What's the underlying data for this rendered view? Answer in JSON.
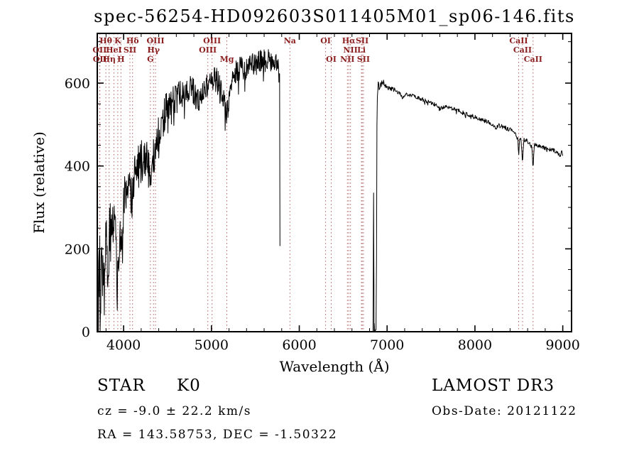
{
  "title": "spec-56254-HD092603S011405M01_sp06-146.fits",
  "axes": {
    "xlabel": "Wavelength (Å)",
    "ylabel": "Flux (relative)",
    "x_range": [
      3700,
      9100
    ],
    "y_range": [
      0,
      720
    ],
    "x_ticks": [
      4000,
      5000,
      6000,
      7000,
      8000,
      9000
    ],
    "y_ticks": [
      0,
      200,
      400,
      600
    ],
    "x_minor_step": 200,
    "y_minor_step": 50
  },
  "annotations": {
    "class_label": "STAR",
    "subclass": "K0",
    "cz": "cz = -9.0 ± 22.2 km/s",
    "radec": "RA = 143.58753, DEC =  -1.50322",
    "survey": "LAMOST DR3",
    "obs_date": "Obs-Date: 20121122"
  },
  "colors": {
    "spectrum": "#000000",
    "line_marker": "#b06060",
    "line_label": "#8b1f1f",
    "frame": "#000000",
    "background": "#ffffff"
  },
  "spectral_lines": [
    {
      "label": "Hθ",
      "wavelength": 3798,
      "row": 0
    },
    {
      "label": "K",
      "wavelength": 3934,
      "row": 0
    },
    {
      "label": "Hδ",
      "wavelength": 4102,
      "row": 0
    },
    {
      "label": "OIII",
      "wavelength": 4363,
      "row": 0
    },
    {
      "label": "OIII",
      "wavelength": 5007,
      "row": 0
    },
    {
      "label": "Na",
      "wavelength": 5893,
      "row": 0
    },
    {
      "label": "OI",
      "wavelength": 6300,
      "row": 0
    },
    {
      "label": "Hα",
      "wavelength": 6563,
      "row": 0
    },
    {
      "label": "SII",
      "wavelength": 6716,
      "row": 0
    },
    {
      "label": "CaII",
      "wavelength": 8498,
      "row": 0
    },
    {
      "label": "OII",
      "wavelength": 3727,
      "row": 1
    },
    {
      "label": "HeI",
      "wavelength": 3889,
      "row": 1
    },
    {
      "label": "SII",
      "wavelength": 4072,
      "row": 1
    },
    {
      "label": "Hγ",
      "wavelength": 4340,
      "row": 1
    },
    {
      "label": "OIII",
      "wavelength": 4959,
      "row": 1
    },
    {
      "label": "NII",
      "wavelength": 6583,
      "row": 1
    },
    {
      "label": "Li",
      "wavelength": 6708,
      "row": 1
    },
    {
      "label": "CaII",
      "wavelength": 8542,
      "row": 1
    },
    {
      "label": "OII",
      "wavelength": 3730,
      "row": 2
    },
    {
      "label": "Hη",
      "wavelength": 3835,
      "row": 2
    },
    {
      "label": "H",
      "wavelength": 3969,
      "row": 2
    },
    {
      "label": "G",
      "wavelength": 4305,
      "row": 2
    },
    {
      "label": "Mg",
      "wavelength": 5175,
      "row": 2
    },
    {
      "label": "OI",
      "wavelength": 6364,
      "row": 2
    },
    {
      "label": "NII",
      "wavelength": 6548,
      "row": 2
    },
    {
      "label": "SII",
      "wavelength": 6731,
      "row": 2
    },
    {
      "label": "CaII",
      "wavelength": 8662,
      "row": 2
    }
  ],
  "chart_data": {
    "type": "line",
    "title": "spec-56254-HD092603S011405M01_sp06-146.fits",
    "xlabel": "Wavelength (Å)",
    "ylabel": "Flux (relative)",
    "xlim": [
      3700,
      9100
    ],
    "ylim": [
      0,
      720
    ],
    "grid": false,
    "legend": "none",
    "noise_seed": 20121122,
    "segments": [
      {
        "name": "blue-arm",
        "step": 4,
        "anchors": [
          [
            3700,
            140
          ],
          [
            3712,
            70
          ],
          [
            3724,
            160
          ],
          [
            3736,
            100
          ],
          [
            3748,
            185
          ],
          [
            3760,
            125
          ],
          [
            3772,
            195
          ],
          [
            3785,
            150
          ],
          [
            3800,
            205
          ],
          [
            3815,
            165
          ],
          [
            3830,
            215
          ],
          [
            3845,
            240
          ],
          [
            3860,
            215
          ],
          [
            3875,
            255
          ],
          [
            3890,
            245
          ],
          [
            3905,
            260
          ],
          [
            3920,
            225
          ],
          [
            3934,
            150
          ],
          [
            3950,
            235
          ],
          [
            3969,
            180
          ],
          [
            3985,
            255
          ],
          [
            4000,
            300
          ],
          [
            4020,
            340
          ],
          [
            4040,
            360
          ],
          [
            4060,
            340
          ],
          [
            4080,
            330
          ],
          [
            4101,
            310
          ],
          [
            4120,
            370
          ],
          [
            4140,
            395
          ],
          [
            4160,
            405
          ],
          [
            4180,
            390
          ],
          [
            4200,
            410
          ],
          [
            4220,
            415
          ],
          [
            4240,
            420
          ],
          [
            4260,
            415
          ],
          [
            4280,
            400
          ],
          [
            4305,
            370
          ],
          [
            4325,
            415
          ],
          [
            4345,
            420
          ],
          [
            4365,
            445
          ],
          [
            4385,
            465
          ],
          [
            4405,
            480
          ],
          [
            4430,
            500
          ],
          [
            4455,
            515
          ],
          [
            4480,
            535
          ],
          [
            4510,
            548
          ],
          [
            4540,
            556
          ],
          [
            4570,
            562
          ],
          [
            4600,
            560
          ],
          [
            4630,
            568
          ],
          [
            4660,
            575
          ],
          [
            4690,
            582
          ],
          [
            4720,
            588
          ],
          [
            4750,
            590
          ],
          [
            4780,
            582
          ],
          [
            4810,
            572
          ],
          [
            4840,
            558
          ],
          [
            4861,
            546
          ],
          [
            4885,
            572
          ],
          [
            4910,
            585
          ],
          [
            4935,
            592
          ],
          [
            4960,
            598
          ],
          [
            4985,
            605
          ],
          [
            5010,
            614
          ],
          [
            5035,
            612
          ],
          [
            5060,
            606
          ],
          [
            5085,
            598
          ],
          [
            5110,
            588
          ],
          [
            5135,
            565
          ],
          [
            5160,
            535
          ],
          [
            5175,
            520
          ],
          [
            5195,
            550
          ],
          [
            5215,
            580
          ],
          [
            5240,
            610
          ],
          [
            5265,
            622
          ],
          [
            5290,
            630
          ],
          [
            5320,
            634
          ],
          [
            5350,
            638
          ],
          [
            5380,
            636
          ],
          [
            5410,
            632
          ],
          [
            5440,
            642
          ],
          [
            5470,
            645
          ],
          [
            5500,
            642
          ],
          [
            5530,
            650
          ],
          [
            5560,
            654
          ],
          [
            5590,
            656
          ],
          [
            5620,
            652
          ],
          [
            5650,
            656
          ],
          [
            5680,
            652
          ],
          [
            5710,
            648
          ],
          [
            5740,
            646
          ],
          [
            5765,
            638
          ],
          [
            5778,
            620
          ],
          [
            5781,
            4
          ]
        ],
        "noise": [
          [
            3700,
            95
          ],
          [
            3760,
            90
          ],
          [
            3820,
            82
          ],
          [
            3880,
            74
          ],
          [
            3940,
            66
          ],
          [
            4000,
            60
          ],
          [
            4080,
            56
          ],
          [
            4160,
            52
          ],
          [
            4240,
            50
          ],
          [
            4320,
            47
          ],
          [
            4400,
            44
          ],
          [
            4480,
            41
          ],
          [
            4560,
            38
          ],
          [
            4640,
            36
          ],
          [
            4720,
            34
          ],
          [
            4800,
            33
          ],
          [
            4880,
            32
          ],
          [
            4960,
            31
          ],
          [
            5040,
            30
          ],
          [
            5120,
            30
          ],
          [
            5200,
            29
          ],
          [
            5280,
            29
          ],
          [
            5360,
            28
          ],
          [
            5440,
            27
          ],
          [
            5520,
            27
          ],
          [
            5600,
            26
          ],
          [
            5680,
            25
          ],
          [
            5760,
            22
          ],
          [
            5781,
            6
          ]
        ]
      },
      {
        "name": "inter-arm-gap",
        "step": 60,
        "anchors": [
          [
            5782,
            0
          ],
          [
            6838,
            0
          ]
        ]
      },
      {
        "name": "gap-spike",
        "step": 2,
        "anchors": [
          [
            6840,
            0
          ],
          [
            6846,
            335
          ],
          [
            6852,
            0
          ]
        ]
      },
      {
        "name": "red-arm",
        "step": 5,
        "anchors": [
          [
            6854,
            0
          ],
          [
            6874,
            0
          ],
          [
            6878,
            60
          ],
          [
            6882,
            420
          ],
          [
            6886,
            595
          ],
          [
            6894,
            575
          ],
          [
            6902,
            600
          ],
          [
            6912,
            592
          ],
          [
            6925,
            602
          ],
          [
            6940,
            596
          ],
          [
            6960,
            600
          ],
          [
            6985,
            594
          ],
          [
            7010,
            590
          ],
          [
            7040,
            588
          ],
          [
            7070,
            585
          ],
          [
            7100,
            583
          ],
          [
            7140,
            576
          ],
          [
            7180,
            564
          ],
          [
            7220,
            574
          ],
          [
            7260,
            571
          ],
          [
            7300,
            569
          ],
          [
            7350,
            565
          ],
          [
            7400,
            561
          ],
          [
            7450,
            557
          ],
          [
            7500,
            552
          ],
          [
            7550,
            548
          ],
          [
            7600,
            537
          ],
          [
            7650,
            543
          ],
          [
            7700,
            541
          ],
          [
            7750,
            538
          ],
          [
            7800,
            534
          ],
          [
            7850,
            530
          ],
          [
            7900,
            526
          ],
          [
            7950,
            522
          ],
          [
            8000,
            518
          ],
          [
            8050,
            514
          ],
          [
            8100,
            510
          ],
          [
            8150,
            506
          ],
          [
            8200,
            500
          ],
          [
            8230,
            491
          ],
          [
            8270,
            498
          ],
          [
            8320,
            494
          ],
          [
            8370,
            490
          ],
          [
            8420,
            486
          ],
          [
            8460,
            481
          ],
          [
            8490,
            462
          ],
          [
            8498,
            418
          ],
          [
            8508,
            466
          ],
          [
            8526,
            462
          ],
          [
            8542,
            406
          ],
          [
            8556,
            464
          ],
          [
            8590,
            461
          ],
          [
            8625,
            456
          ],
          [
            8650,
            444
          ],
          [
            8662,
            388
          ],
          [
            8674,
            452
          ],
          [
            8710,
            450
          ],
          [
            8750,
            447
          ],
          [
            8790,
            444
          ],
          [
            8830,
            441
          ],
          [
            8870,
            439
          ],
          [
            8910,
            436
          ],
          [
            8945,
            431
          ],
          [
            8970,
            424
          ],
          [
            8988,
            436
          ],
          [
            9000,
            428
          ],
          [
            9003,
            2
          ]
        ],
        "noise": [
          [
            6880,
            30
          ],
          [
            6900,
            18
          ],
          [
            6930,
            10
          ],
          [
            6980,
            7
          ],
          [
            7100,
            5
          ],
          [
            9003,
            5
          ]
        ]
      }
    ]
  }
}
